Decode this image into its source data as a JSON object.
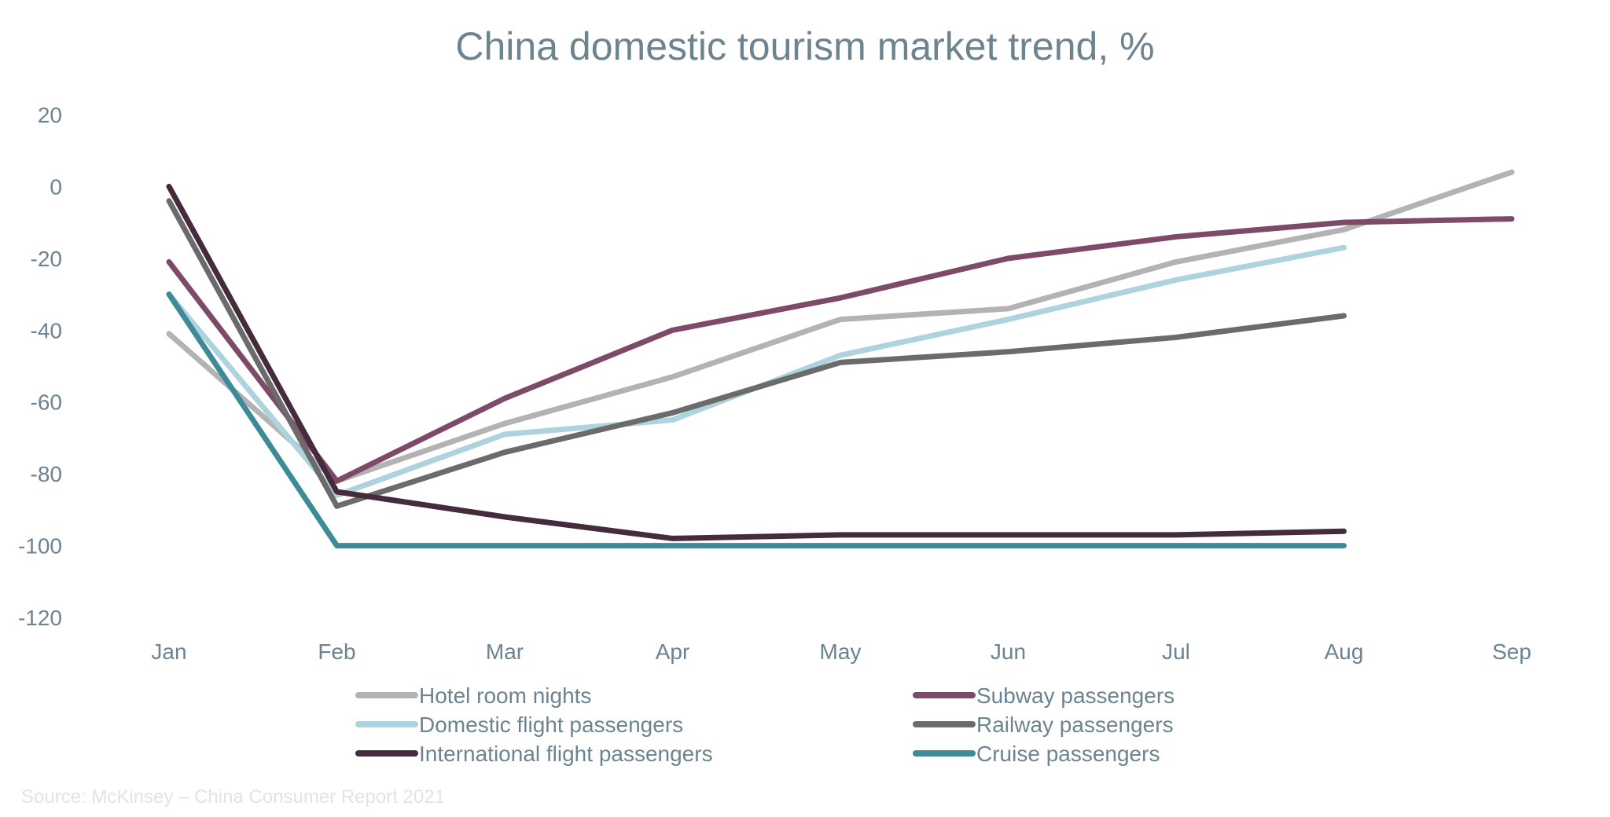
{
  "chart_data": {
    "type": "line",
    "title": "China domestic tourism market trend, %",
    "categories": [
      "Jan",
      "Feb",
      "Mar",
      "Apr",
      "May",
      "Jun",
      "Jul",
      "Aug",
      "Sep"
    ],
    "ylim": [
      -120,
      20
    ],
    "yticks": [
      20,
      0,
      -20,
      -40,
      -60,
      -80,
      -100,
      -120
    ],
    "grid": false,
    "legend_position": "bottom",
    "series": [
      {
        "name": "Hotel room nights",
        "color": "#b3b3b3",
        "values": [
          -41,
          -82,
          -66,
          -53,
          -37,
          -34,
          -21,
          -12,
          4
        ]
      },
      {
        "name": "Subway passengers",
        "color": "#7d4a67",
        "values": [
          -21,
          -82,
          -59,
          -40,
          -31,
          -20,
          -14,
          -10,
          -9
        ]
      },
      {
        "name": "Domestic flight passengers",
        "color": "#add3de",
        "values": [
          -30,
          -86,
          -69,
          -65,
          -47,
          -37,
          -26,
          -17,
          null
        ]
      },
      {
        "name": "Railway passengers",
        "color": "#6b6b6b",
        "values": [
          -4,
          -89,
          -74,
          -63,
          -49,
          -46,
          -42,
          -36,
          null
        ]
      },
      {
        "name": "International flight passengers",
        "color": "#452c3c",
        "values": [
          0,
          -85,
          -92,
          -98,
          -97,
          -97,
          -97,
          -96,
          null
        ]
      },
      {
        "name": "Cruise passengers",
        "color": "#3f8a99",
        "values": [
          -30,
          -100,
          -100,
          -100,
          -100,
          -100,
          -100,
          -100,
          null
        ]
      }
    ],
    "source": "Source: McKinsey – China Consumer Report 2021"
  }
}
